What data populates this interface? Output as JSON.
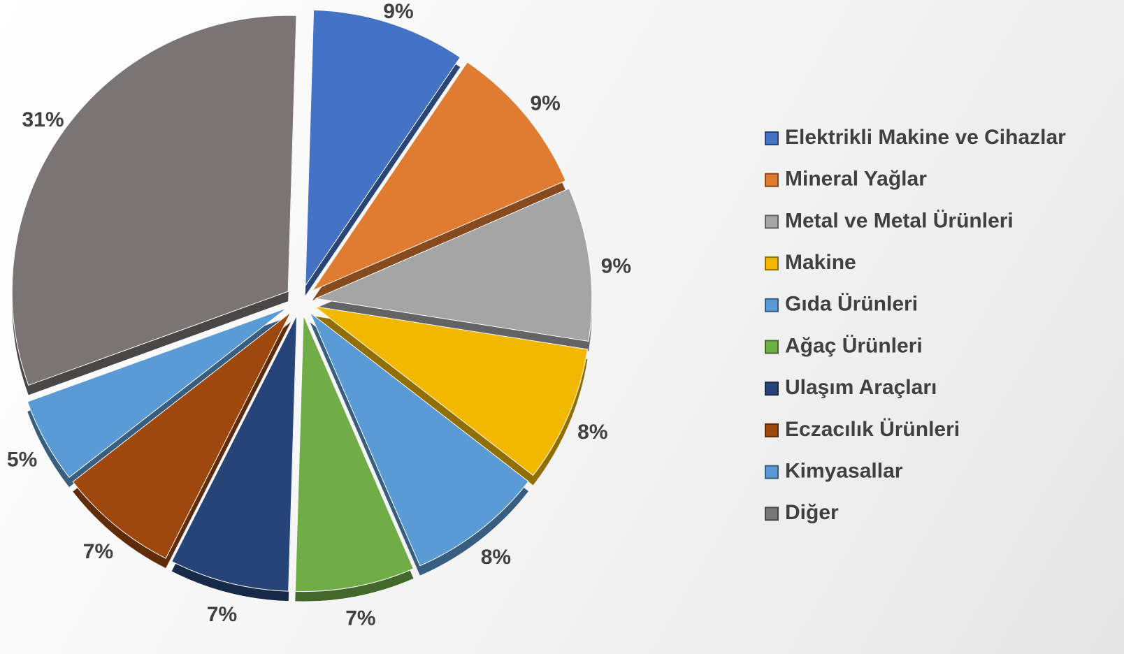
{
  "chart_data": {
    "type": "pie",
    "categories": [
      "Elektrikli Makine ve Cihazlar",
      "Mineral Yağlar",
      "Metal ve Metal Ürünleri",
      "Makine",
      "Gıda Ürünleri",
      "Ağaç Ürünleri",
      "Ulaşım Araçları",
      "Eczacılık Ürünleri",
      "Kimyasallar",
      "Diğer"
    ],
    "values": [
      9,
      9,
      9,
      8,
      8,
      7,
      7,
      7,
      5,
      31
    ],
    "value_labels": [
      "9%",
      "9%",
      "9%",
      "8%",
      "8%",
      "7%",
      "7%",
      "7%",
      "5%",
      "31%"
    ],
    "colors": [
      "#4472c4",
      "#e07b32",
      "#a5a5a5",
      "#f2b800",
      "#5b9bd5",
      "#70ad47",
      "#264478",
      "#9e480e",
      "#5b9bd5",
      "#7a7474"
    ],
    "legend": "right"
  }
}
